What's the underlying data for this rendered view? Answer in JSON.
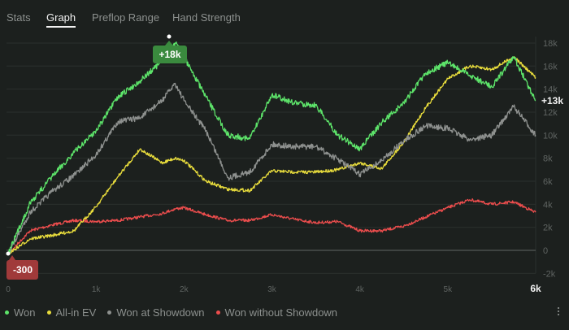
{
  "tabs": [
    {
      "label": "Stats",
      "active": false
    },
    {
      "label": "Graph",
      "active": true
    },
    {
      "label": "Preflop Range",
      "active": false
    },
    {
      "label": "Hand Strength",
      "active": false
    }
  ],
  "badges": {
    "max": {
      "label": "+18k",
      "color": "#3a8a3e"
    },
    "min": {
      "label": "-300",
      "color": "#a03a3a"
    },
    "current": {
      "label": "+13k"
    }
  },
  "menu_icon": "more-vertical-icon",
  "chart_data": {
    "type": "line",
    "title": "",
    "xlabel": "Hands",
    "ylabel": "Winnings",
    "x_ticks": [
      "0",
      "1k",
      "2k",
      "3k",
      "4k",
      "5k",
      "6k"
    ],
    "x_ticks_values": [
      0,
      1000,
      2000,
      3000,
      4000,
      5000,
      6000
    ],
    "x_current_label": "6k",
    "y_ticks": [
      "-2k",
      "0",
      "2k",
      "4k",
      "6k",
      "8k",
      "10k",
      "12k",
      "14k",
      "16k",
      "18k"
    ],
    "y_ticks_values": [
      -2000,
      0,
      2000,
      4000,
      6000,
      8000,
      10000,
      12000,
      14000,
      16000,
      18000
    ],
    "xlim": [
      0,
      6000
    ],
    "ylim": [
      -2000,
      18000
    ],
    "grid": true,
    "legend_position": "bottom-left",
    "x": [
      0,
      250,
      500,
      750,
      1000,
      1250,
      1500,
      1750,
      1900,
      2000,
      2250,
      2500,
      2750,
      3000,
      3250,
      3500,
      3750,
      4000,
      4250,
      4500,
      4750,
      5000,
      5250,
      5500,
      5750,
      6000
    ],
    "series": [
      {
        "name": "Won",
        "color": "#5de46a",
        "values": [
          -300,
          4100,
          6400,
          8500,
          10400,
          13300,
          14700,
          16400,
          18000,
          16800,
          13300,
          10000,
          9700,
          13500,
          12800,
          12600,
          10000,
          8800,
          11100,
          12800,
          15400,
          16300,
          15200,
          14200,
          16800,
          13000
        ]
      },
      {
        "name": "All-in EV",
        "color": "#e8dc3c",
        "values": [
          -300,
          1000,
          1300,
          1700,
          3800,
          6400,
          8800,
          7600,
          8000,
          7800,
          6000,
          5300,
          5200,
          6900,
          6800,
          6800,
          7000,
          7600,
          7100,
          9400,
          12400,
          14900,
          16000,
          15700,
          16800,
          15000
        ]
      },
      {
        "name": "Won at Showdown",
        "color": "#8e918f",
        "values": [
          -300,
          3300,
          5100,
          6500,
          8300,
          11200,
          11500,
          13000,
          14500,
          13000,
          10400,
          6300,
          6800,
          9200,
          9000,
          9000,
          7900,
          6600,
          7800,
          9500,
          10800,
          10600,
          9600,
          10000,
          12500,
          10000
        ]
      },
      {
        "name": "Won without Showdown",
        "color": "#ec4d4d",
        "values": [
          -300,
          1700,
          2200,
          2600,
          2500,
          2600,
          2900,
          3200,
          3600,
          3700,
          3100,
          2600,
          2600,
          3100,
          2700,
          2400,
          2500,
          1700,
          1700,
          2100,
          2900,
          3700,
          4400,
          4000,
          4200,
          3300
        ]
      }
    ]
  },
  "legend": [
    {
      "label": "Won",
      "color": "#5de46a"
    },
    {
      "label": "All-in EV",
      "color": "#e8dc3c"
    },
    {
      "label": "Won at Showdown",
      "color": "#8e918f"
    },
    {
      "label": "Won without Showdown",
      "color": "#ec4d4d"
    }
  ]
}
